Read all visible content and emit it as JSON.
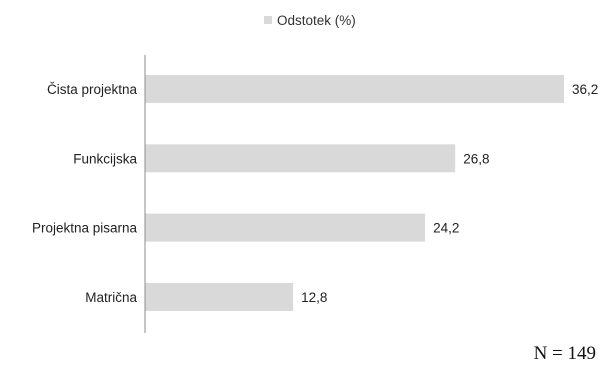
{
  "chart_data": {
    "type": "bar",
    "orientation": "horizontal",
    "categories": [
      "Čista projektna",
      "Funkcijska",
      "Projektna pisarna",
      "Matrična"
    ],
    "series": [
      {
        "name": "Odstotek (%)",
        "values": [
          36.2,
          26.8,
          24.2,
          12.8
        ]
      }
    ],
    "value_labels": [
      "36,2",
      "26,8",
      "24,2",
      "12,8"
    ],
    "xlim": [
      0,
      36.2
    ],
    "grid": false,
    "legend_position": "top",
    "bar_color": "#d9d9d9",
    "axis_color": "#8c8c8c"
  },
  "note": "N = 149"
}
